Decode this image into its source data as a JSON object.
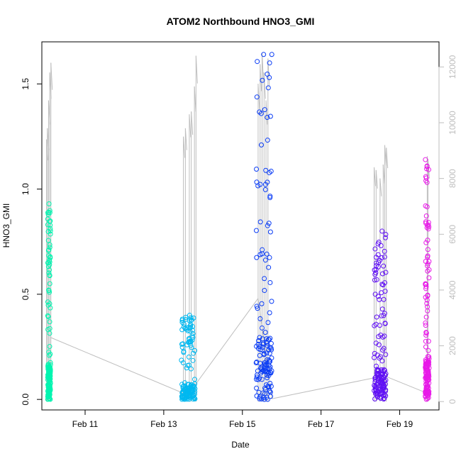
{
  "chart_data": {
    "type": "scatter",
    "title": "ATOM2 Northbound HNO3_GMI",
    "xlabel": "Date",
    "ylabel": "HNO3_GMI",
    "x_ticks": [
      "Feb 11",
      "Feb 13",
      "Feb 15",
      "Feb 17",
      "Feb 19"
    ],
    "x_tick_days": [
      11,
      13,
      15,
      17,
      19
    ],
    "xlim": [
      9.9,
      20.0
    ],
    "ylim": [
      -0.05,
      1.7
    ],
    "y_ticks": [
      "0.0",
      "0.5",
      "1.0",
      "1.5"
    ],
    "y_tick_values": [
      0.0,
      0.5,
      1.0,
      1.5
    ],
    "y2lim": [
      -300,
      12900
    ],
    "y2_ticks": [
      "0",
      "2000",
      "4000",
      "6000",
      "8000",
      "10000",
      "12000"
    ],
    "y2_tick_values": [
      0,
      2000,
      4000,
      6000,
      8000,
      10000,
      12000
    ],
    "grid": false,
    "colors": {
      "segment1": "#00f5b0",
      "segment2": "#00b8f0",
      "segment3": "#0a3cf5",
      "segment4": "#6010f5",
      "segment5": "#e81ae8",
      "altitude": "#bebebe"
    },
    "series": [
      {
        "x_range": [
          10.05,
          10.12
        ],
        "y_max": 0.93,
        "y_min": 0.0
      },
      {
        "x_range": [
          13.45,
          13.8
        ],
        "y_max": 0.4,
        "y_min": 0.0
      },
      {
        "x_range": [
          15.35,
          15.75
        ],
        "y_max": 1.64,
        "y_min": 0.0
      },
      {
        "x_range": [
          18.35,
          18.65
        ],
        "y_max": 0.8,
        "y_min": 0.0
      },
      {
        "x_range": [
          19.65,
          19.75
        ],
        "y_max": 1.14,
        "y_min": 0.0
      }
    ]
  }
}
